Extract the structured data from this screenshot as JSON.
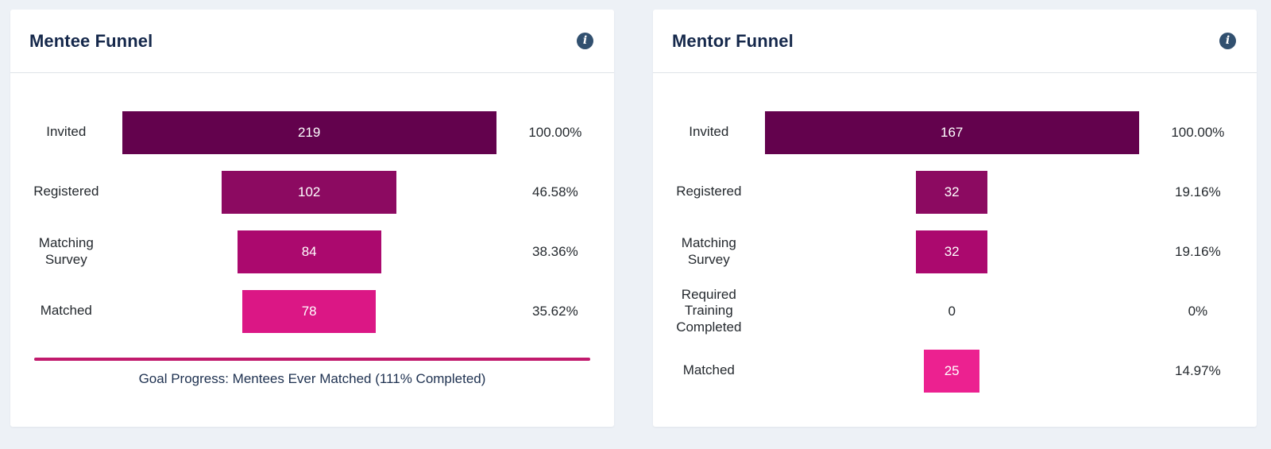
{
  "page": {
    "background": "#edf1f6"
  },
  "cards": [
    {
      "title": "Mentee Funnel",
      "info_glyph": "i",
      "rows": [
        {
          "label": "Invited",
          "value": "219",
          "pct": "100.00%",
          "width_pct": 100,
          "color": "#63024d"
        },
        {
          "label": "Registered",
          "value": "102",
          "pct": "46.58%",
          "width_pct": 46.58,
          "color": "#8c0a61"
        },
        {
          "label": "Matching Survey",
          "value": "84",
          "pct": "38.36%",
          "width_pct": 38.36,
          "color": "#ab096e"
        },
        {
          "label": "Matched",
          "value": "78",
          "pct": "35.62%",
          "width_pct": 35.62,
          "color": "#db1785"
        }
      ],
      "goal_text": "Goal Progress: Mentees Ever Matched (111% Completed)",
      "goal_line_color": "#c11a6d"
    },
    {
      "title": "Mentor Funnel",
      "info_glyph": "i",
      "rows": [
        {
          "label": "Invited",
          "value": "167",
          "pct": "100.00%",
          "width_pct": 100,
          "color": "#63024d"
        },
        {
          "label": "Registered",
          "value": "32",
          "pct": "19.16%",
          "width_pct": 19.16,
          "color": "#8c0a61"
        },
        {
          "label": "Matching Survey",
          "value": "32",
          "pct": "19.16%",
          "width_pct": 19.16,
          "color": "#ab096e"
        },
        {
          "label": "Required Training Completed",
          "value": "0",
          "pct": "0%",
          "width_pct": 0,
          "color": null
        },
        {
          "label": "Matched",
          "value": "25",
          "pct": "14.97%",
          "width_pct": 14.97,
          "color": "#ec2190"
        }
      ]
    }
  ],
  "chart_data": [
    {
      "type": "bar",
      "subtype": "centered-funnel",
      "title": "Mentee Funnel",
      "orientation": "horizontal",
      "categories": [
        "Invited",
        "Registered",
        "Matching Survey",
        "Matched"
      ],
      "values": [
        219,
        102,
        84,
        78
      ],
      "percent_of_first": [
        100.0,
        46.58,
        38.36,
        35.62
      ],
      "bar_colors": [
        "#63024d",
        "#8c0a61",
        "#ab096e",
        "#db1785"
      ],
      "value_labels_inside_bars": true,
      "percent_labels_right": [
        "100.00%",
        "46.58%",
        "38.36%",
        "35.62%"
      ],
      "annotation": "Goal Progress: Mentees Ever Matched (111% Completed)",
      "grid": false,
      "legend": false
    },
    {
      "type": "bar",
      "subtype": "centered-funnel",
      "title": "Mentor Funnel",
      "orientation": "horizontal",
      "categories": [
        "Invited",
        "Registered",
        "Matching Survey",
        "Required Training Completed",
        "Matched"
      ],
      "values": [
        167,
        32,
        32,
        0,
        25
      ],
      "percent_of_first": [
        100.0,
        19.16,
        19.16,
        0,
        14.97
      ],
      "bar_colors": [
        "#63024d",
        "#8c0a61",
        "#ab096e",
        null,
        "#ec2190"
      ],
      "value_labels_inside_bars": true,
      "percent_labels_right": [
        "100.00%",
        "19.16%",
        "19.16%",
        "0%",
        "14.97%"
      ],
      "annotation": null,
      "grid": false,
      "legend": false
    }
  ]
}
